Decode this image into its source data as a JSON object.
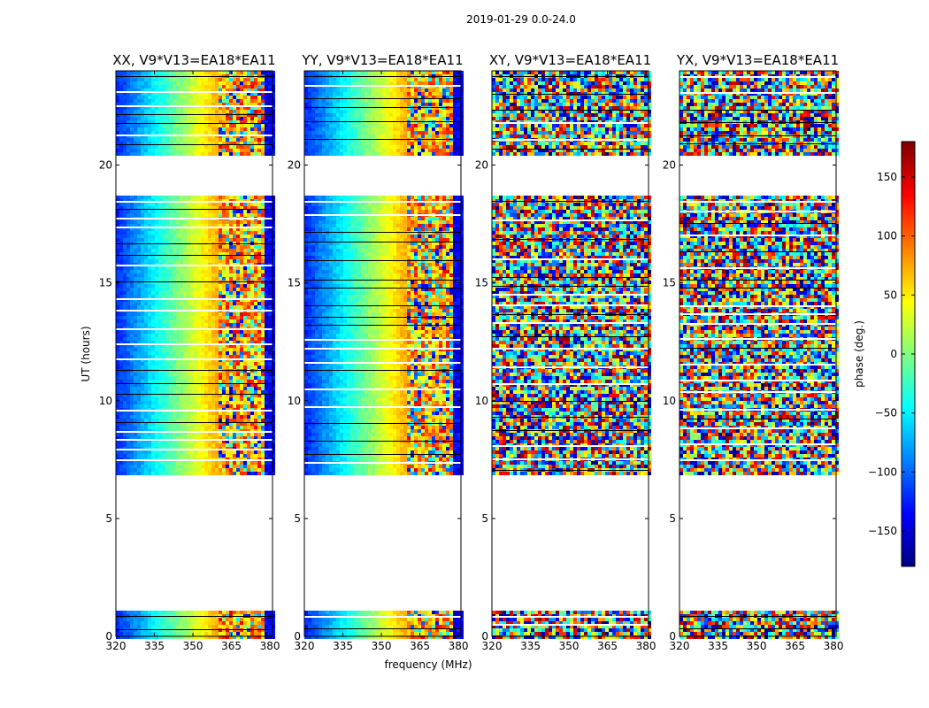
{
  "figure": {
    "suptitle": "2019-01-29 0.0-24.0",
    "xlabel": "frequency (MHz)",
    "ylabel": "UT (hours)"
  },
  "chart_data": {
    "type": "heatmap",
    "colormap": "jet",
    "panels": [
      {
        "title": "XX, V9*V13=EA18*EA11",
        "kind": "parallel"
      },
      {
        "title": "YY, V9*V13=EA18*EA11",
        "kind": "parallel"
      },
      {
        "title": "XY, V9*V13=EA18*EA11",
        "kind": "cross"
      },
      {
        "title": "YX, V9*V13=EA18*EA11",
        "kind": "cross"
      }
    ],
    "xlim": [
      320,
      381
    ],
    "ylim": [
      0,
      24
    ],
    "xticks": [
      "320",
      "335",
      "350",
      "365",
      "380"
    ],
    "yticks": [
      "0",
      "5",
      "10",
      "15",
      "20"
    ],
    "data_ut_ranges": [
      [
        0.0,
        1.1
      ],
      [
        6.9,
        18.7
      ],
      [
        20.5,
        24.0
      ]
    ],
    "flagged_ut_ranges": [
      [
        1.1,
        6.9
      ],
      [
        18.7,
        20.5
      ]
    ],
    "parallel_phase_model": {
      "phase_at_320": -120,
      "phase_at_363": 95,
      "rfi_start_mhz": 359
    },
    "colorbar": {
      "label": "phase (deg.)",
      "range": [
        -180,
        180
      ],
      "ticks": [
        "150",
        "100",
        "50",
        "0",
        "−50",
        "−100",
        "−150"
      ],
      "tick_values": [
        150,
        100,
        50,
        0,
        -50,
        -100,
        -150
      ]
    }
  }
}
